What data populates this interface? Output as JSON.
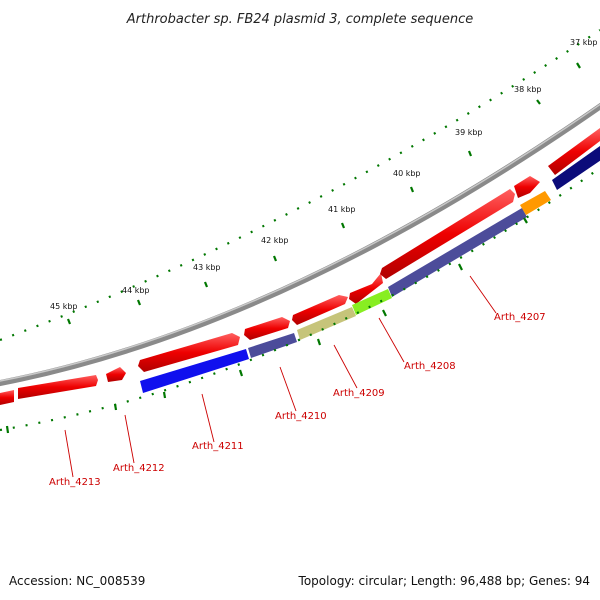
{
  "title": "Arthrobacter sp. FB24 plasmid 3, complete sequence",
  "footer": {
    "accession": "Accession: NC_008539",
    "summary": "Topology: circular; Length: 96,488 bp; Genes: 94"
  },
  "ticks": [
    "37 kbp",
    "38 kbp",
    "39 kbp",
    "40 kbp",
    "41 kbp",
    "43 kbp",
    "44 kbp",
    "45 kbp"
  ],
  "tick_label_extra": "42 kbp",
  "gene_labels": [
    "Arth_4207",
    "Arth_4208",
    "Arth_4209",
    "Arth_4210",
    "Arth_4211",
    "Arth_4212",
    "Arth_4213"
  ],
  "colors": {
    "backbone": "#8a8a8a",
    "forward_gene": "#ee0000",
    "blue": "#1010ee",
    "slate": "#4c4c9a",
    "navy": "#0b0b7a",
    "lime": "#88ee22",
    "khaki": "#c6c47a",
    "orange": "#ff9900",
    "tick": "#007700",
    "label": "#cc0000"
  }
}
